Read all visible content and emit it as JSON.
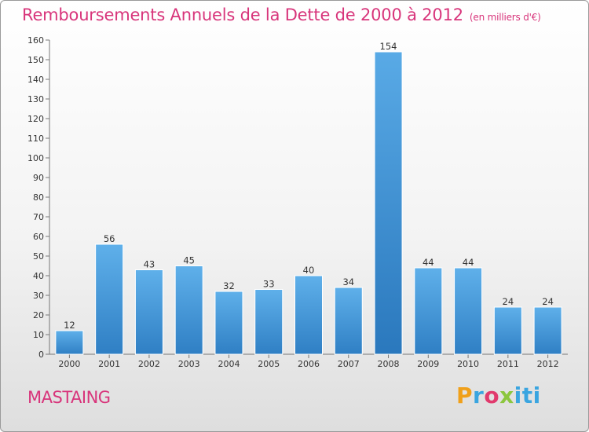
{
  "chart_data": {
    "type": "bar",
    "title": "Remboursements Annuels de la Dette de 2000 à 2012",
    "unit_note": "(en milliers d'€)",
    "categories": [
      "2000",
      "2001",
      "2002",
      "2003",
      "2004",
      "2005",
      "2006",
      "2007",
      "2008",
      "2009",
      "2010",
      "2011",
      "2012"
    ],
    "values": [
      12,
      56,
      43,
      45,
      32,
      33,
      40,
      34,
      154,
      44,
      44,
      24,
      24
    ],
    "ylim": [
      0,
      160
    ],
    "yticks": [
      0,
      10,
      20,
      30,
      40,
      50,
      60,
      70,
      80,
      90,
      100,
      110,
      120,
      130,
      140,
      150,
      160
    ],
    "grid": false,
    "legend": "none",
    "bar_color": "#4a9fe0",
    "highlight_color": "#2f86cf"
  },
  "footer": {
    "town": "MASTAING",
    "logo_letters": [
      "P",
      "r",
      "o",
      "x",
      "iti"
    ]
  },
  "colors": {
    "title": "#d8357b",
    "town": "#d8357b"
  }
}
